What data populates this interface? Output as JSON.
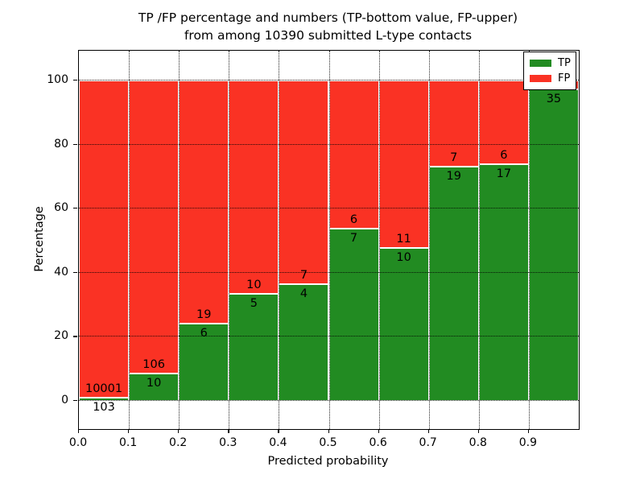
{
  "title": {
    "line1": "TP /FP percentage and numbers (TP-bottom value, FP-upper)",
    "line2": "from among 10390 submitted L-type contacts"
  },
  "axes": {
    "xlabel": "Predicted probability",
    "ylabel": "Percentage",
    "x_ticks": [
      "0.0",
      "0.1",
      "0.2",
      "0.3",
      "0.4",
      "0.5",
      "0.6",
      "0.7",
      "0.8",
      "0.9"
    ],
    "y_ticks": [
      "0",
      "20",
      "40",
      "60",
      "80",
      "100"
    ],
    "xlim": [
      0.0,
      1.0
    ],
    "ylim": [
      -8.8,
      109.3
    ],
    "grid": "dotted, both axes, drawn above bars"
  },
  "legend": {
    "position": "upper right",
    "items": [
      {
        "label": "TP",
        "color": "#228b22"
      },
      {
        "label": "FP",
        "color": "#fa3224"
      }
    ]
  },
  "colors": {
    "tp": "#228b22",
    "fp": "#fa3224",
    "bar_edge": "#ffffff",
    "text": "#000000",
    "background": "#ffffff"
  },
  "chart_data": {
    "type": "bar",
    "stacked": true,
    "total_contacts_in_title": 10390,
    "x_bin_width": 0.1,
    "bars": [
      {
        "x_start": 0.0,
        "x_end": 0.1,
        "tp_pct": 1.02,
        "fp_pct": 98.98,
        "tp_count": 103,
        "fp_count": 10001,
        "tp_label": "103",
        "fp_label": "10001"
      },
      {
        "x_start": 0.1,
        "x_end": 0.2,
        "tp_pct": 8.62,
        "fp_pct": 91.38,
        "tp_count": 10,
        "fp_count": 106,
        "tp_label": "10",
        "fp_label": "106"
      },
      {
        "x_start": 0.2,
        "x_end": 0.3,
        "tp_pct": 24.0,
        "fp_pct": 76.0,
        "tp_count": 6,
        "fp_count": 19,
        "tp_label": "6",
        "fp_label": "19"
      },
      {
        "x_start": 0.3,
        "x_end": 0.4,
        "tp_pct": 33.33,
        "fp_pct": 66.67,
        "tp_count": 5,
        "fp_count": 10,
        "tp_label": "5",
        "fp_label": "10"
      },
      {
        "x_start": 0.4,
        "x_end": 0.5,
        "tp_pct": 36.36,
        "fp_pct": 63.64,
        "tp_count": 4,
        "fp_count": 7,
        "tp_label": "4",
        "fp_label": "7"
      },
      {
        "x_start": 0.5,
        "x_end": 0.6,
        "tp_pct": 53.85,
        "fp_pct": 46.15,
        "tp_count": 7,
        "fp_count": 6,
        "tp_label": "7",
        "fp_label": "6"
      },
      {
        "x_start": 0.6,
        "x_end": 0.7,
        "tp_pct": 47.62,
        "fp_pct": 52.38,
        "tp_count": 10,
        "fp_count": 11,
        "tp_label": "10",
        "fp_label": "11"
      },
      {
        "x_start": 0.7,
        "x_end": 0.8,
        "tp_pct": 73.08,
        "fp_pct": 26.92,
        "tp_count": 19,
        "fp_count": 7,
        "tp_label": "19",
        "fp_label": "7"
      },
      {
        "x_start": 0.8,
        "x_end": 0.9,
        "tp_pct": 73.91,
        "fp_pct": 26.09,
        "tp_count": 17,
        "fp_count": 6,
        "tp_label": "17",
        "fp_label": "6"
      },
      {
        "x_start": 0.9,
        "x_end": 1.0,
        "tp_pct": 97.22,
        "fp_pct": 2.78,
        "tp_count": 35,
        "fp_count": null,
        "tp_label": "35",
        "fp_label": ""
      }
    ]
  }
}
